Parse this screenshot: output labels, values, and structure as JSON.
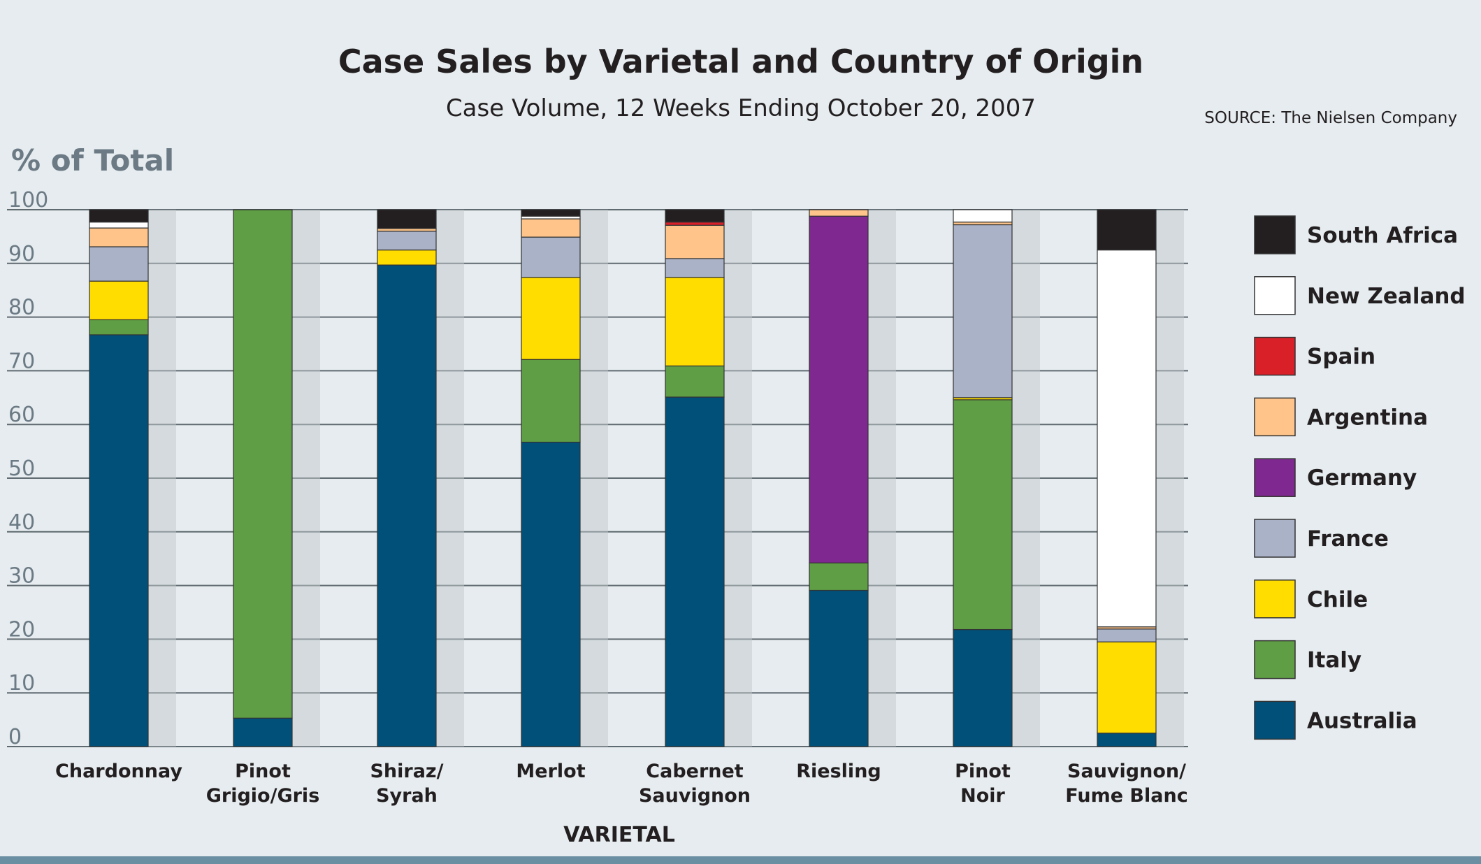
{
  "chart_data": {
    "type": "bar",
    "stacked": true,
    "title": "Case Sales by Varietal and Country of Origin",
    "subtitle": "Case Volume, 12 Weeks Ending October 20, 2007",
    "source": "SOURCE: The Nielsen Company",
    "ylabel": "% of Total",
    "xlabel": "VARIETAL",
    "ylim": [
      0,
      100
    ],
    "yticks": [
      0,
      10,
      20,
      30,
      40,
      50,
      60,
      70,
      80,
      90,
      100
    ],
    "grid": true,
    "legend_position": "right",
    "categories": [
      [
        "Chardonnay"
      ],
      [
        "Pinot",
        "Grigio/Gris"
      ],
      [
        "Shiraz/",
        "Syrah"
      ],
      [
        "Merlot"
      ],
      [
        "Cabernet",
        "Sauvignon"
      ],
      [
        "Riesling"
      ],
      [
        "Pinot",
        "Noir"
      ],
      [
        "Sauvignon/",
        "Fume Blanc"
      ]
    ],
    "series": [
      {
        "name": "Australia",
        "color": "#00507a",
        "values": [
          76.7,
          5.3,
          89.7,
          56.7,
          65.1,
          29.1,
          21.8,
          2.5
        ]
      },
      {
        "name": "Italy",
        "color": "#5f9e44",
        "values": [
          2.8,
          94.7,
          0,
          15.4,
          5.8,
          5.1,
          42.8,
          0
        ]
      },
      {
        "name": "Chile",
        "color": "#ffdd00",
        "values": [
          7.2,
          0,
          2.8,
          15.3,
          16.5,
          0,
          0.4,
          17.0
        ]
      },
      {
        "name": "France",
        "color": "#aab2c8",
        "values": [
          6.4,
          0,
          3.5,
          7.5,
          3.5,
          0,
          32.2,
          2.4
        ]
      },
      {
        "name": "Germany",
        "color": "#7f288f",
        "values": [
          0,
          0,
          0,
          0,
          0,
          64.6,
          0,
          0
        ]
      },
      {
        "name": "Argentina",
        "color": "#fec489",
        "values": [
          3.5,
          0,
          0.5,
          3.4,
          6.2,
          1.2,
          0.5,
          0.4
        ]
      },
      {
        "name": "Spain",
        "color": "#d92028",
        "values": [
          0,
          0,
          0,
          0,
          0.6,
          0,
          0,
          0
        ]
      },
      {
        "name": "New Zealand",
        "color": "#ffffff",
        "values": [
          1.1,
          0,
          0,
          0.5,
          0,
          0,
          2.3,
          70.2
        ]
      },
      {
        "name": "South Africa",
        "color": "#231f20",
        "values": [
          2.3,
          0,
          3.5,
          1.2,
          2.3,
          0,
          0,
          7.5
        ]
      }
    ],
    "legend_order": [
      "South Africa",
      "New Zealand",
      "Spain",
      "Argentina",
      "Germany",
      "France",
      "Chile",
      "Italy",
      "Australia"
    ]
  }
}
